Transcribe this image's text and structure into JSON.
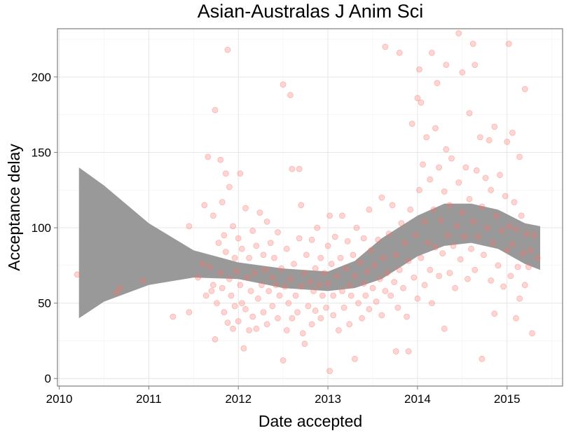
{
  "chart_data": {
    "type": "scatter",
    "title": "Asian-Australas J Anim Sci",
    "xlabel": "Date accepted",
    "ylabel": "Acceptance delay",
    "xlim": [
      2009.98,
      2015.62
    ],
    "ylim": [
      -5,
      232
    ],
    "x_ticks": [
      2010,
      2011,
      2012,
      2013,
      2014,
      2015
    ],
    "x_tick_labels": [
      "2010",
      "2011",
      "2012",
      "2013",
      "2014",
      "2015"
    ],
    "y_ticks": [
      0,
      50,
      100,
      150,
      200
    ],
    "y_tick_labels": [
      "0",
      "50",
      "100",
      "150",
      "200"
    ],
    "grid": true,
    "legend": "none",
    "point_color": "#f8766d",
    "band_color": "#999999",
    "points": [
      [
        2010.2,
        69
      ],
      [
        2010.64,
        57
      ],
      [
        2010.68,
        60
      ],
      [
        2010.94,
        65
      ],
      [
        2011.27,
        41
      ],
      [
        2011.45,
        44
      ],
      [
        2011.45,
        101
      ],
      [
        2011.55,
        67
      ],
      [
        2011.6,
        76
      ],
      [
        2011.62,
        115
      ],
      [
        2011.64,
        55
      ],
      [
        2011.66,
        147
      ],
      [
        2011.68,
        74
      ],
      [
        2011.7,
        58
      ],
      [
        2011.72,
        108
      ],
      [
        2011.72,
        62
      ],
      [
        2011.74,
        26
      ],
      [
        2011.74,
        178
      ],
      [
        2011.76,
        50
      ],
      [
        2011.78,
        90
      ],
      [
        2011.8,
        145
      ],
      [
        2011.8,
        70
      ],
      [
        2011.82,
        60
      ],
      [
        2011.82,
        117
      ],
      [
        2011.84,
        44
      ],
      [
        2011.84,
        95
      ],
      [
        2011.86,
        136
      ],
      [
        2011.86,
        84
      ],
      [
        2011.88,
        218
      ],
      [
        2011.88,
        37
      ],
      [
        2011.9,
        127
      ],
      [
        2011.9,
        66
      ],
      [
        2011.92,
        55
      ],
      [
        2011.94,
        101
      ],
      [
        2011.94,
        33
      ],
      [
        2011.96,
        80
      ],
      [
        2011.96,
        48
      ],
      [
        2011.98,
        71
      ],
      [
        2012.0,
        93
      ],
      [
        2012.0,
        38
      ],
      [
        2012.02,
        136
      ],
      [
        2012.02,
        62
      ],
      [
        2012.04,
        86
      ],
      [
        2012.04,
        50
      ],
      [
        2012.06,
        20
      ],
      [
        2012.08,
        46
      ],
      [
        2012.08,
        113
      ],
      [
        2012.1,
        67
      ],
      [
        2012.12,
        32
      ],
      [
        2012.12,
        80
      ],
      [
        2012.14,
        58
      ],
      [
        2012.16,
        98
      ],
      [
        2012.16,
        41
      ],
      [
        2012.18,
        70
      ],
      [
        2012.2,
        88
      ],
      [
        2012.2,
        33
      ],
      [
        2012.22,
        53
      ],
      [
        2012.24,
        110
      ],
      [
        2012.26,
        62
      ],
      [
        2012.28,
        82
      ],
      [
        2012.28,
        44
      ],
      [
        2012.3,
        72
      ],
      [
        2012.32,
        104
      ],
      [
        2012.32,
        36
      ],
      [
        2012.34,
        58
      ],
      [
        2012.36,
        90
      ],
      [
        2012.38,
        48
      ],
      [
        2012.38,
        67
      ],
      [
        2012.4,
        80
      ],
      [
        2012.42,
        62
      ],
      [
        2012.44,
        40
      ],
      [
        2012.44,
        97
      ],
      [
        2012.46,
        55
      ],
      [
        2012.48,
        73
      ],
      [
        2012.5,
        195
      ],
      [
        2012.5,
        12
      ],
      [
        2012.52,
        61
      ],
      [
        2012.54,
        86
      ],
      [
        2012.54,
        32
      ],
      [
        2012.56,
        50
      ],
      [
        2012.58,
        188
      ],
      [
        2012.58,
        66
      ],
      [
        2012.6,
        40
      ],
      [
        2012.6,
        139
      ],
      [
        2012.62,
        76
      ],
      [
        2012.64,
        55
      ],
      [
        2012.66,
        44
      ],
      [
        2012.68,
        139
      ],
      [
        2012.68,
        93
      ],
      [
        2012.7,
        61
      ],
      [
        2012.7,
        115
      ],
      [
        2012.72,
        30
      ],
      [
        2012.74,
        23
      ],
      [
        2012.74,
        70
      ],
      [
        2012.76,
        82
      ],
      [
        2012.78,
        48
      ],
      [
        2012.8,
        64
      ],
      [
        2012.82,
        92
      ],
      [
        2012.82,
        36
      ],
      [
        2012.84,
        58
      ],
      [
        2012.86,
        73
      ],
      [
        2012.86,
        45
      ],
      [
        2012.88,
        100
      ],
      [
        2012.9,
        62
      ],
      [
        2012.92,
        40
      ],
      [
        2012.92,
        80
      ],
      [
        2012.94,
        55
      ],
      [
        2012.96,
        70
      ],
      [
        2012.98,
        47
      ],
      [
        2013.0,
        88
      ],
      [
        2013.0,
        63
      ],
      [
        2013.02,
        5
      ],
      [
        2013.02,
        108
      ],
      [
        2013.04,
        76
      ],
      [
        2013.06,
        55
      ],
      [
        2013.06,
        42
      ],
      [
        2013.08,
        94
      ],
      [
        2013.1,
        68
      ],
      [
        2013.12,
        32
      ],
      [
        2013.14,
        80
      ],
      [
        2013.16,
        58
      ],
      [
        2013.16,
        108
      ],
      [
        2013.18,
        47
      ],
      [
        2013.2,
        73
      ],
      [
        2013.22,
        91
      ],
      [
        2013.24,
        62
      ],
      [
        2013.24,
        36
      ],
      [
        2013.26,
        55
      ],
      [
        2013.28,
        82
      ],
      [
        2013.3,
        13
      ],
      [
        2013.3,
        68
      ],
      [
        2013.32,
        100
      ],
      [
        2013.34,
        50
      ],
      [
        2013.36,
        77
      ],
      [
        2013.38,
        40
      ],
      [
        2013.4,
        63
      ],
      [
        2013.4,
        93
      ],
      [
        2013.42,
        55
      ],
      [
        2013.44,
        71
      ],
      [
        2013.46,
        112
      ],
      [
        2013.46,
        46
      ],
      [
        2013.48,
        85
      ],
      [
        2013.5,
        60
      ],
      [
        2013.52,
        75
      ],
      [
        2013.54,
        51
      ],
      [
        2013.56,
        92
      ],
      [
        2013.58,
        66
      ],
      [
        2013.6,
        120
      ],
      [
        2013.6,
        42
      ],
      [
        2013.62,
        80
      ],
      [
        2013.64,
        220
      ],
      [
        2013.64,
        58
      ],
      [
        2013.66,
        70
      ],
      [
        2013.68,
        96
      ],
      [
        2013.7,
        55
      ],
      [
        2013.72,
        115
      ],
      [
        2013.74,
        64
      ],
      [
        2013.76,
        18
      ],
      [
        2013.76,
        82
      ],
      [
        2013.78,
        47
      ],
      [
        2013.8,
        216
      ],
      [
        2013.8,
        72
      ],
      [
        2013.82,
        103
      ],
      [
        2013.84,
        60
      ],
      [
        2013.86,
        90
      ],
      [
        2013.88,
        41
      ],
      [
        2013.9,
        18
      ],
      [
        2013.9,
        78
      ],
      [
        2013.92,
        112
      ],
      [
        2013.94,
        169
      ],
      [
        2013.96,
        67
      ],
      [
        2013.98,
        95
      ],
      [
        2014.0,
        53
      ],
      [
        2014.0,
        186
      ],
      [
        2014.02,
        205
      ],
      [
        2014.02,
        125
      ],
      [
        2014.04,
        80
      ],
      [
        2014.04,
        183
      ],
      [
        2014.06,
        142
      ],
      [
        2014.08,
        62
      ],
      [
        2014.08,
        104
      ],
      [
        2014.1,
        160
      ],
      [
        2014.12,
        90
      ],
      [
        2014.14,
        72
      ],
      [
        2014.14,
        132
      ],
      [
        2014.16,
        216
      ],
      [
        2014.16,
        50
      ],
      [
        2014.18,
        112
      ],
      [
        2014.2,
        87
      ],
      [
        2014.2,
        166
      ],
      [
        2014.22,
        196
      ],
      [
        2014.24,
        140
      ],
      [
        2014.24,
        68
      ],
      [
        2014.26,
        105
      ],
      [
        2014.28,
        83
      ],
      [
        2014.3,
        124
      ],
      [
        2014.3,
        33
      ],
      [
        2014.32,
        208
      ],
      [
        2014.32,
        152
      ],
      [
        2014.34,
        95
      ],
      [
        2014.36,
        70
      ],
      [
        2014.36,
        115
      ],
      [
        2014.38,
        146
      ],
      [
        2014.4,
        88
      ],
      [
        2014.42,
        60
      ],
      [
        2014.44,
        101
      ],
      [
        2014.46,
        229
      ],
      [
        2014.46,
        130
      ],
      [
        2014.48,
        79
      ],
      [
        2014.5,
        203
      ],
      [
        2014.5,
        110
      ],
      [
        2014.52,
        94
      ],
      [
        2014.54,
        140
      ],
      [
        2014.56,
        66
      ],
      [
        2014.58,
        176
      ],
      [
        2014.58,
        119
      ],
      [
        2014.6,
        86
      ],
      [
        2014.62,
        222
      ],
      [
        2014.62,
        104
      ],
      [
        2014.64,
        208
      ],
      [
        2014.64,
        72
      ],
      [
        2014.66,
        138
      ],
      [
        2014.68,
        94
      ],
      [
        2014.7,
        160
      ],
      [
        2014.72,
        13
      ],
      [
        2014.72,
        114
      ],
      [
        2014.74,
        82
      ],
      [
        2014.76,
        133
      ],
      [
        2014.78,
        100
      ],
      [
        2014.8,
        158
      ],
      [
        2014.82,
        65
      ],
      [
        2014.82,
        125
      ],
      [
        2014.84,
        90
      ],
      [
        2014.86,
        167
      ],
      [
        2014.86,
        43
      ],
      [
        2014.88,
        108
      ],
      [
        2014.9,
        75
      ],
      [
        2014.92,
        135
      ],
      [
        2014.94,
        98
      ],
      [
        2014.96,
        61
      ],
      [
        2014.98,
        121
      ],
      [
        2015.0,
        85
      ],
      [
        2015.0,
        157
      ],
      [
        2015.02,
        222
      ],
      [
        2015.02,
        101
      ],
      [
        2015.04,
        68
      ],
      [
        2015.06,
        163
      ],
      [
        2015.06,
        89
      ],
      [
        2015.08,
        117
      ],
      [
        2015.1,
        40
      ],
      [
        2015.1,
        99
      ],
      [
        2015.12,
        74
      ],
      [
        2015.14,
        147
      ],
      [
        2015.14,
        53
      ],
      [
        2015.16,
        108
      ],
      [
        2015.18,
        83
      ],
      [
        2015.2,
        192
      ],
      [
        2015.2,
        62
      ],
      [
        2015.22,
        96
      ],
      [
        2015.24,
        74
      ],
      [
        2015.26,
        85
      ],
      [
        2015.28,
        30
      ],
      [
        2015.3,
        95
      ],
      [
        2015.34,
        80
      ]
    ],
    "smooth_band": {
      "x": [
        2010.22,
        2010.5,
        2011.0,
        2011.5,
        2012.0,
        2012.5,
        2013.0,
        2013.3,
        2013.6,
        2014.0,
        2014.3,
        2014.6,
        2014.9,
        2015.2,
        2015.37
      ],
      "upper": [
        140,
        128,
        103,
        85,
        77,
        73,
        71,
        78,
        93,
        108,
        116,
        116,
        112,
        103,
        101
      ],
      "lower": [
        40,
        51,
        62,
        67,
        66,
        60,
        58,
        60,
        66,
        81,
        88,
        90,
        86,
        76,
        72
      ]
    }
  }
}
